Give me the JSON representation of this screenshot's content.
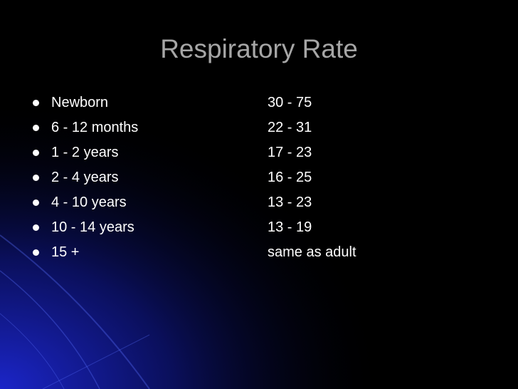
{
  "slide": {
    "title": "Respiratory Rate",
    "rows": [
      {
        "label": "Newborn",
        "value": "30 - 75"
      },
      {
        "label": "6 - 12 months",
        "value": "22 - 31"
      },
      {
        "label": "1 - 2 years",
        "value": "17 - 23"
      },
      {
        "label": "2 - 4 years",
        "value": "16 - 25"
      },
      {
        "label": "4 - 10 years",
        "value": "13 - 23"
      },
      {
        "label": "10 - 14 years",
        "value": "13 - 19"
      },
      {
        "label": "15 +",
        "value": "same as adult"
      }
    ]
  }
}
